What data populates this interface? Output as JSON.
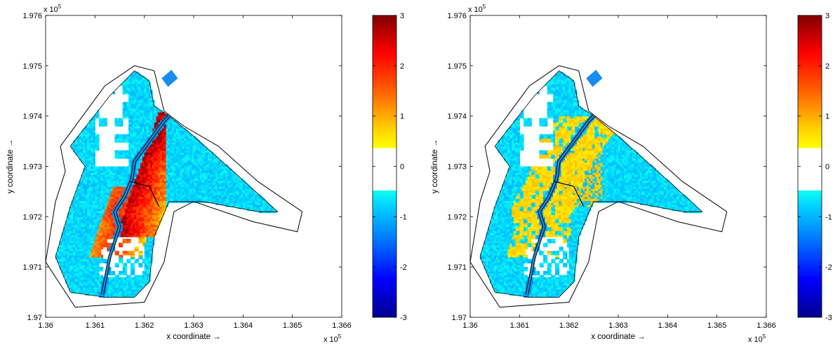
{
  "chart_data": [
    {
      "type": "heatmap",
      "title": "",
      "xlabel": "x coordinate →",
      "ylabel": "y coordinate →",
      "x_multiplier": "x 10",
      "x_multiplier_exp": "5",
      "y_multiplier": "x 10",
      "y_multiplier_exp": "5",
      "xlim": [
        1.36,
        1.366
      ],
      "ylim": [
        1.97,
        1.976
      ],
      "x_ticks": [
        "1.36",
        "1.361",
        "1.362",
        "1.363",
        "1.364",
        "1.365",
        "1.366"
      ],
      "y_ticks": [
        "1.97",
        "1.971",
        "1.972",
        "1.973",
        "1.974",
        "1.975",
        "1.976"
      ],
      "colorbar": {
        "range": [
          -3,
          3
        ],
        "ticks": [
          "3",
          "2",
          "1",
          "0",
          "-1",
          "-2",
          "-3"
        ],
        "colormap": "jet",
        "neutral_band": "white around 0"
      },
      "pattern": "strong positive values (up to ~3) east of the central channel in the upper reach; elsewhere mostly negative (~-0.5 to -1)"
    },
    {
      "type": "heatmap",
      "title": "",
      "xlabel": "x coordinate →",
      "ylabel": "y coordinate →",
      "x_multiplier": "x 10",
      "x_multiplier_exp": "5",
      "y_multiplier": "x 10",
      "y_multiplier_exp": "5",
      "xlim": [
        1.36,
        1.366
      ],
      "ylim": [
        1.97,
        1.976
      ],
      "x_ticks": [
        "1.36",
        "1.361",
        "1.362",
        "1.363",
        "1.364",
        "1.365",
        "1.366"
      ],
      "y_ticks": [
        "1.97",
        "1.971",
        "1.972",
        "1.973",
        "1.974",
        "1.975",
        "1.976"
      ],
      "colorbar": {
        "range": [
          -3,
          3
        ],
        "ticks": [
          "3",
          "2",
          "1",
          "0",
          "-1",
          "-2",
          "-3"
        ],
        "colormap": "jet",
        "neutral_band": "white around 0"
      },
      "pattern": "moderate positive values (~0.5 to 1) near the channel; elsewhere mostly negative (~-0.5 to -1)"
    }
  ]
}
